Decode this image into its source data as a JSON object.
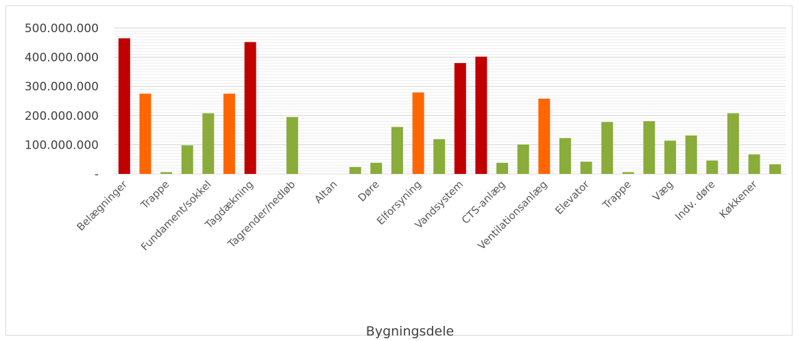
{
  "chart_data": {
    "type": "bar",
    "title": "",
    "xlabel": "Bygningsdele",
    "ylabel": "",
    "ylim": [
      0,
      500000000
    ],
    "yticks": [
      {
        "value": 0,
        "label": "-"
      },
      {
        "value": 100000000,
        "label": "100.000.000"
      },
      {
        "value": 200000000,
        "label": "200.000.000"
      },
      {
        "value": 300000000,
        "label": "300.000.000"
      },
      {
        "value": 400000000,
        "label": "400.000.000"
      },
      {
        "value": 500000000,
        "label": "500.000.000"
      }
    ],
    "grid": true,
    "categories": [
      "Belægninger",
      "",
      "Trappe",
      "",
      "Fundament/sokkel",
      "",
      "Tagdækning",
      "",
      "Tagrender/nedløb",
      "",
      "Altan",
      "",
      "Døre",
      "",
      "Elforsyning",
      "",
      "Vandsystem",
      "",
      "CTS-anlæg",
      "",
      "Ventilationsanlæg",
      "",
      "Elevator",
      "",
      "Trappe",
      "",
      "Væg",
      "",
      "Indv. døre",
      "",
      "Køkkener",
      ""
    ],
    "values": [
      465000000,
      275000000,
      6000000,
      98000000,
      208000000,
      275000000,
      452000000,
      0,
      195000000,
      0,
      0,
      24000000,
      38000000,
      161000000,
      279000000,
      119000000,
      380000000,
      402000000,
      38000000,
      101000000,
      258000000,
      123000000,
      42000000,
      178000000,
      6000000,
      181000000,
      114000000,
      132000000,
      46000000,
      208000000,
      67000000,
      33000000
    ],
    "bar_colors": [
      "#c00000",
      "#ff6600",
      "#8aac3a",
      "#8aac3a",
      "#8aac3a",
      "#ff6600",
      "#c00000",
      "#8aac3a",
      "#8aac3a",
      "#8aac3a",
      "#8aac3a",
      "#8aac3a",
      "#8aac3a",
      "#8aac3a",
      "#ff6600",
      "#8aac3a",
      "#c00000",
      "#c00000",
      "#8aac3a",
      "#8aac3a",
      "#ff6600",
      "#8aac3a",
      "#8aac3a",
      "#8aac3a",
      "#8aac3a",
      "#8aac3a",
      "#8aac3a",
      "#8aac3a",
      "#8aac3a",
      "#8aac3a",
      "#8aac3a",
      "#8aac3a"
    ],
    "colors": {
      "red": "#c00000",
      "orange": "#ff6600",
      "green": "#8aac3a",
      "grid": "#d9d9d9"
    }
  }
}
